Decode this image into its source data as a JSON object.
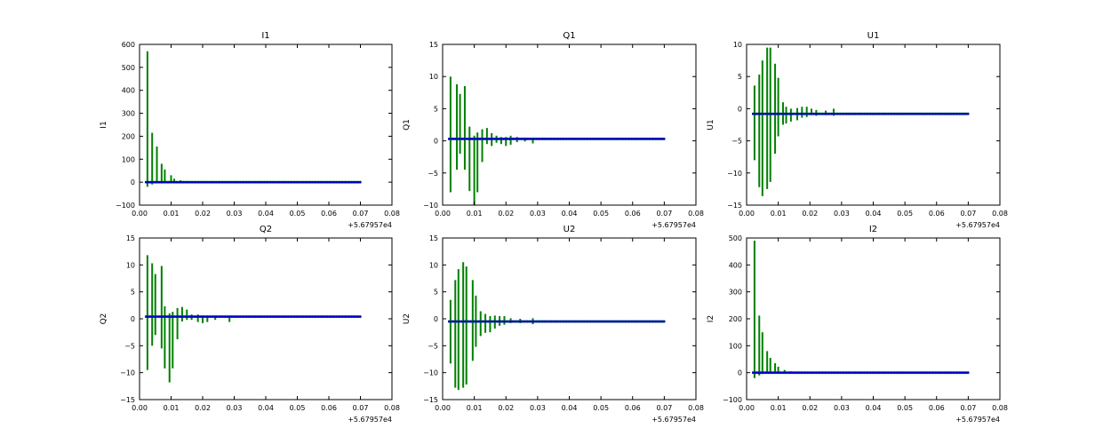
{
  "figure": {
    "background": "#ffffff",
    "errorbar_color": "#008000",
    "point_color": "#0000cc"
  },
  "chart_data": [
    {
      "type": "scatter",
      "title": "I1",
      "ylabel": "I1",
      "xlim": [
        0.0,
        0.08
      ],
      "ylim": [
        -100,
        600
      ],
      "xticks": [
        "0.00",
        "0.01",
        "0.02",
        "0.03",
        "0.04",
        "0.05",
        "0.06",
        "0.07",
        "0.08"
      ],
      "yticks": [
        "−100",
        "0",
        "100",
        "200",
        "300",
        "400",
        "500",
        "600"
      ],
      "ytick_values": [
        -100,
        0,
        100,
        200,
        300,
        400,
        500,
        600
      ],
      "x_offset_label": "+5.67957e4",
      "baseline": 0.0,
      "x_start": 0.002,
      "x_end": 0.07,
      "errorbars": [
        {
          "x": 0.0025,
          "low": -20,
          "high": 570
        },
        {
          "x": 0.004,
          "low": -10,
          "high": 215
        },
        {
          "x": 0.0055,
          "low": -5,
          "high": 155
        },
        {
          "x": 0.007,
          "low": -3,
          "high": 80
        },
        {
          "x": 0.008,
          "low": -2,
          "high": 55
        },
        {
          "x": 0.01,
          "low": -2,
          "high": 30
        },
        {
          "x": 0.011,
          "low": -1,
          "high": 15
        },
        {
          "x": 0.013,
          "low": -1,
          "high": 8
        },
        {
          "x": 0.015,
          "low": -1,
          "high": 5
        },
        {
          "x": 0.018,
          "low": -1,
          "high": 4
        },
        {
          "x": 0.021,
          "low": -1,
          "high": 3
        }
      ]
    },
    {
      "type": "scatter",
      "title": "Q1",
      "ylabel": "Q1",
      "xlim": [
        0.0,
        0.08
      ],
      "ylim": [
        -10,
        15
      ],
      "xticks": [
        "0.00",
        "0.01",
        "0.02",
        "0.03",
        "0.04",
        "0.05",
        "0.06",
        "0.07",
        "0.08"
      ],
      "yticks": [
        "−10",
        "−5",
        "0",
        "5",
        "10",
        "15"
      ],
      "ytick_values": [
        -10,
        -5,
        0,
        5,
        10,
        15
      ],
      "x_offset_label": "+5.67957e4",
      "baseline": 0.3,
      "x_start": 0.002,
      "x_end": 0.07,
      "errorbars": [
        {
          "x": 0.0025,
          "low": -8.0,
          "high": 10.0
        },
        {
          "x": 0.0045,
          "low": -4.5,
          "high": 8.8
        },
        {
          "x": 0.0055,
          "low": -2.0,
          "high": 7.3
        },
        {
          "x": 0.007,
          "low": -4.5,
          "high": 8.5
        },
        {
          "x": 0.0085,
          "low": -7.8,
          "high": 2.2
        },
        {
          "x": 0.01,
          "low": -10.0,
          "high": 0.8
        },
        {
          "x": 0.011,
          "low": -8.0,
          "high": 1.3
        },
        {
          "x": 0.0125,
          "low": -3.3,
          "high": 1.8
        },
        {
          "x": 0.014,
          "low": -0.5,
          "high": 2.0
        },
        {
          "x": 0.0155,
          "low": -0.8,
          "high": 1.2
        },
        {
          "x": 0.017,
          "low": -0.3,
          "high": 0.8
        },
        {
          "x": 0.0185,
          "low": -0.5,
          "high": 0.6
        },
        {
          "x": 0.02,
          "low": -0.8,
          "high": 0.6
        },
        {
          "x": 0.0215,
          "low": -0.6,
          "high": 0.8
        },
        {
          "x": 0.0235,
          "low": -0.2,
          "high": 0.6
        },
        {
          "x": 0.026,
          "low": -0.1,
          "high": 0.5
        },
        {
          "x": 0.0285,
          "low": -0.4,
          "high": 0.4
        }
      ]
    },
    {
      "type": "scatter",
      "title": "U1",
      "ylabel": "U1",
      "xlim": [
        0.0,
        0.08
      ],
      "ylim": [
        -15,
        10
      ],
      "xticks": [
        "0.00",
        "0.01",
        "0.02",
        "0.03",
        "0.04",
        "0.05",
        "0.06",
        "0.07",
        "0.08"
      ],
      "yticks": [
        "−15",
        "−10",
        "−5",
        "0",
        "5",
        "10"
      ],
      "ytick_values": [
        -15,
        -10,
        -5,
        0,
        5,
        10
      ],
      "x_offset_label": "+5.67957e4",
      "baseline": -0.8,
      "x_start": 0.002,
      "x_end": 0.07,
      "errorbars": [
        {
          "x": 0.0025,
          "low": -8.0,
          "high": 3.6
        },
        {
          "x": 0.004,
          "low": -12.2,
          "high": 5.3
        },
        {
          "x": 0.005,
          "low": -13.6,
          "high": 7.5
        },
        {
          "x": 0.0065,
          "low": -12.5,
          "high": 9.5
        },
        {
          "x": 0.0075,
          "low": -11.4,
          "high": 9.5
        },
        {
          "x": 0.009,
          "low": -7.0,
          "high": 7.0
        },
        {
          "x": 0.01,
          "low": -4.3,
          "high": 4.8
        },
        {
          "x": 0.0115,
          "low": -2.5,
          "high": 1.0
        },
        {
          "x": 0.0125,
          "low": -2.3,
          "high": 0.3
        },
        {
          "x": 0.014,
          "low": -2.0,
          "high": 0.0
        },
        {
          "x": 0.016,
          "low": -1.8,
          "high": 0.1
        },
        {
          "x": 0.0175,
          "low": -1.4,
          "high": 0.3
        },
        {
          "x": 0.019,
          "low": -1.3,
          "high": 0.3
        },
        {
          "x": 0.0205,
          "low": -1.0,
          "high": 0.0
        },
        {
          "x": 0.022,
          "low": -1.1,
          "high": -0.2
        },
        {
          "x": 0.025,
          "low": -1.0,
          "high": -0.3
        },
        {
          "x": 0.0275,
          "low": -1.1,
          "high": 0.0
        }
      ]
    },
    {
      "type": "scatter",
      "title": "Q2",
      "ylabel": "Q2",
      "xlim": [
        0.0,
        0.08
      ],
      "ylim": [
        -15,
        15
      ],
      "xticks": [
        "0.00",
        "0.01",
        "0.02",
        "0.03",
        "0.04",
        "0.05",
        "0.06",
        "0.07",
        "0.08"
      ],
      "yticks": [
        "−15",
        "−10",
        "−5",
        "0",
        "5",
        "10",
        "15"
      ],
      "ytick_values": [
        -15,
        -10,
        -5,
        0,
        5,
        10,
        15
      ],
      "x_offset_label": "+5.67957e4",
      "baseline": 0.4,
      "x_start": 0.002,
      "x_end": 0.07,
      "errorbars": [
        {
          "x": 0.0025,
          "low": -9.5,
          "high": 11.8
        },
        {
          "x": 0.004,
          "low": -5.0,
          "high": 10.3
        },
        {
          "x": 0.005,
          "low": -3.0,
          "high": 8.3
        },
        {
          "x": 0.007,
          "low": -5.5,
          "high": 9.8
        },
        {
          "x": 0.008,
          "low": -9.2,
          "high": 2.3
        },
        {
          "x": 0.0095,
          "low": -11.8,
          "high": 1.0
        },
        {
          "x": 0.0105,
          "low": -9.2,
          "high": 1.3
        },
        {
          "x": 0.012,
          "low": -3.8,
          "high": 2.0
        },
        {
          "x": 0.0135,
          "low": -0.5,
          "high": 2.2
        },
        {
          "x": 0.015,
          "low": -0.2,
          "high": 1.7
        },
        {
          "x": 0.0165,
          "low": -0.2,
          "high": 0.8
        },
        {
          "x": 0.0185,
          "low": -0.6,
          "high": 0.8
        },
        {
          "x": 0.02,
          "low": -0.8,
          "high": 0.6
        },
        {
          "x": 0.0215,
          "low": -0.6,
          "high": 0.6
        },
        {
          "x": 0.024,
          "low": -0.2,
          "high": 0.6
        },
        {
          "x": 0.0285,
          "low": -0.6,
          "high": 0.3
        }
      ]
    },
    {
      "type": "scatter",
      "title": "U2",
      "ylabel": "U2",
      "xlim": [
        0.0,
        0.08
      ],
      "ylim": [
        -15,
        15
      ],
      "xticks": [
        "0.00",
        "0.01",
        "0.02",
        "0.03",
        "0.04",
        "0.05",
        "0.06",
        "0.07",
        "0.08"
      ],
      "yticks": [
        "−15",
        "−10",
        "−5",
        "0",
        "5",
        "10",
        "15"
      ],
      "ytick_values": [
        -15,
        -10,
        -5,
        0,
        5,
        10,
        15
      ],
      "x_offset_label": "+5.67957e4",
      "baseline": -0.5,
      "x_start": 0.002,
      "x_end": 0.07,
      "errorbars": [
        {
          "x": 0.0025,
          "low": -8.3,
          "high": 3.5
        },
        {
          "x": 0.004,
          "low": -12.8,
          "high": 7.2
        },
        {
          "x": 0.005,
          "low": -13.2,
          "high": 9.2
        },
        {
          "x": 0.0065,
          "low": -12.8,
          "high": 10.5
        },
        {
          "x": 0.0075,
          "low": -12.2,
          "high": 9.7
        },
        {
          "x": 0.0095,
          "low": -7.8,
          "high": 7.2
        },
        {
          "x": 0.0105,
          "low": -5.2,
          "high": 4.3
        },
        {
          "x": 0.012,
          "low": -3.2,
          "high": 1.4
        },
        {
          "x": 0.0135,
          "low": -2.6,
          "high": 0.9
        },
        {
          "x": 0.015,
          "low": -2.5,
          "high": 0.5
        },
        {
          "x": 0.0165,
          "low": -1.8,
          "high": 0.6
        },
        {
          "x": 0.018,
          "low": -1.3,
          "high": 0.5
        },
        {
          "x": 0.0195,
          "low": -1.1,
          "high": 0.5
        },
        {
          "x": 0.0215,
          "low": -0.8,
          "high": 0.1
        },
        {
          "x": 0.0245,
          "low": -0.8,
          "high": 0.0
        },
        {
          "x": 0.0285,
          "low": -1.0,
          "high": 0.1
        }
      ]
    },
    {
      "type": "scatter",
      "title": "I2",
      "ylabel": "I2",
      "xlim": [
        0.0,
        0.08
      ],
      "ylim": [
        -100,
        500
      ],
      "xticks": [
        "0.00",
        "0.01",
        "0.02",
        "0.03",
        "0.04",
        "0.05",
        "0.06",
        "0.07",
        "0.08"
      ],
      "yticks": [
        "−100",
        "0",
        "100",
        "200",
        "300",
        "400",
        "500"
      ],
      "ytick_values": [
        -100,
        0,
        100,
        200,
        300,
        400,
        500
      ],
      "x_offset_label": "+5.67957e4",
      "baseline": 0.0,
      "x_start": 0.002,
      "x_end": 0.07,
      "errorbars": [
        {
          "x": 0.0025,
          "low": -20,
          "high": 490
        },
        {
          "x": 0.004,
          "low": -10,
          "high": 212
        },
        {
          "x": 0.005,
          "low": -5,
          "high": 150
        },
        {
          "x": 0.0065,
          "low": -3,
          "high": 80
        },
        {
          "x": 0.0075,
          "low": -2,
          "high": 55
        },
        {
          "x": 0.009,
          "low": -2,
          "high": 35
        },
        {
          "x": 0.01,
          "low": -1,
          "high": 22
        },
        {
          "x": 0.012,
          "low": -1,
          "high": 10
        },
        {
          "x": 0.014,
          "low": -1,
          "high": 5
        },
        {
          "x": 0.017,
          "low": -1,
          "high": 4
        },
        {
          "x": 0.02,
          "low": -1,
          "high": 3
        }
      ]
    }
  ]
}
